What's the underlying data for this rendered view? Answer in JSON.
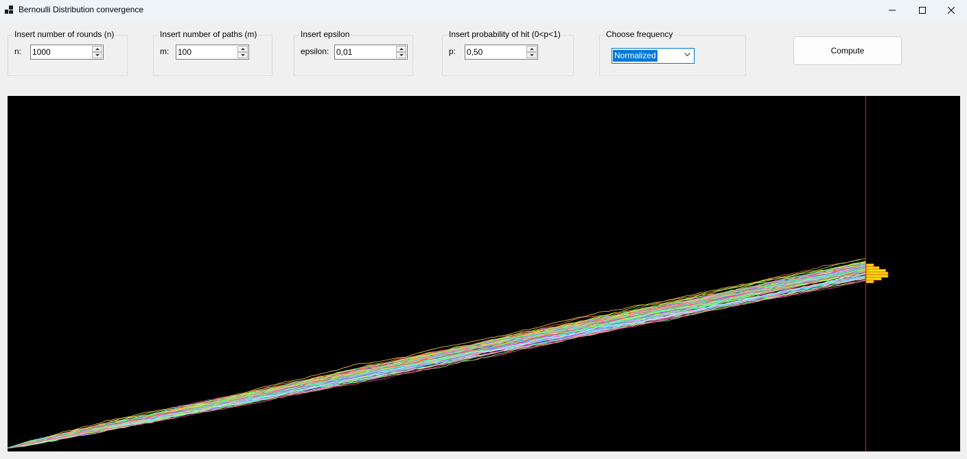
{
  "window": {
    "title": "Bernoulli Distribution convergence",
    "icon": "app-window-icon",
    "controls": [
      "minimize-icon",
      "maximize-icon",
      "close-icon"
    ]
  },
  "inputs": {
    "rounds": {
      "group_title": "Insert number of rounds (n)",
      "label": "n:",
      "value": "1000"
    },
    "paths": {
      "group_title": "Insert number of paths (m)",
      "label": "m:",
      "value": "100"
    },
    "epsilon": {
      "group_title": "Insert epsilon",
      "label": "epsilon:",
      "value": "0,01"
    },
    "probability": {
      "group_title": "Insert probability of hit (0<p<1)",
      "label": "p:",
      "value": "0,50"
    },
    "frequency": {
      "group_title": "Choose frequency",
      "selected": "Normalized"
    }
  },
  "compute_label": "Compute",
  "colors": {
    "plot_background": "#000000",
    "vertical_line": "#e0261b",
    "histogram_fill": "#ffe600",
    "histogram_border": "#d42a1e",
    "selection": "#0078d7"
  },
  "chart_data": {
    "type": "line",
    "description_of_series": "100 random-walk paths of the count of hits over 1000 rounds with p = 0.50",
    "x_range": [
      0,
      1000
    ],
    "paths": 100,
    "rounds": 1000,
    "p": 0.5,
    "histogram_at_last_round": {
      "orientation": "horizontal",
      "bins_relative_width": [
        0.35,
        0.6,
        0.9,
        1.0,
        1.0,
        0.7,
        0.35
      ]
    },
    "grid": false,
    "legend": "none"
  }
}
